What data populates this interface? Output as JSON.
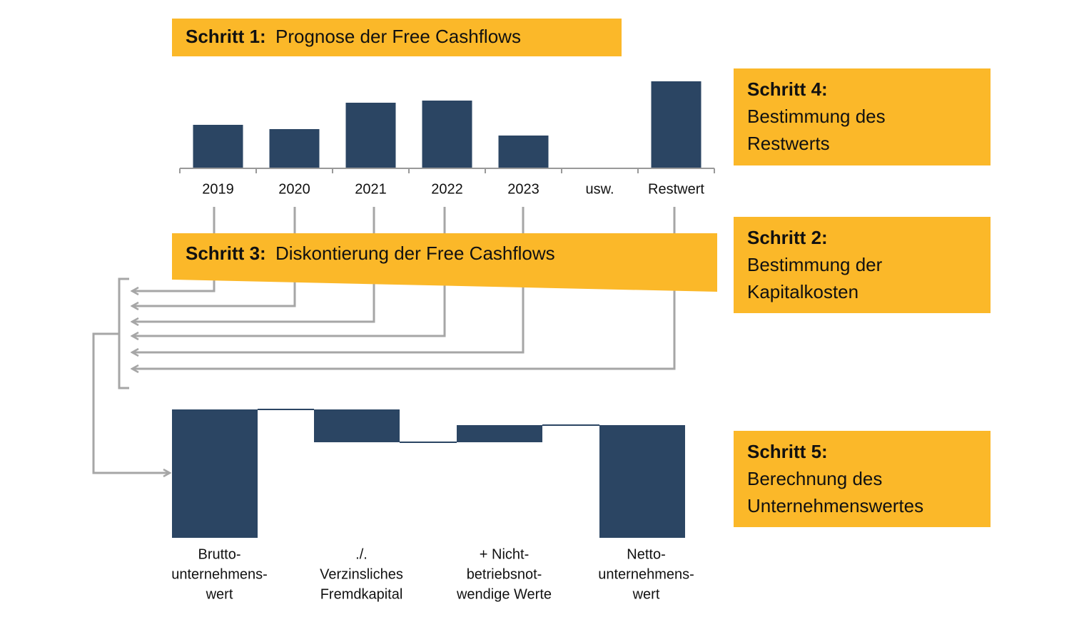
{
  "steps": [
    {
      "title": "Schritt 1:",
      "lines": [
        "Prognose der Free Cashflows"
      ]
    },
    {
      "title": "Schritt 2:",
      "lines": [
        "Bestimmung der",
        "Kapitalkosten"
      ]
    },
    {
      "title": "Schritt 3:",
      "lines": [
        "Diskontierung der Free Cashflows"
      ]
    },
    {
      "title": "Schritt 4:",
      "lines": [
        "Bestimmung des",
        "Restwerts"
      ]
    },
    {
      "title": "Schritt 5:",
      "lines": [
        "Berechnung des",
        "Unternehmenswertes"
      ]
    }
  ],
  "cashflow_chart": {
    "type": "bar",
    "categories": [
      "2019",
      "2020",
      "2021",
      "2022",
      "2023",
      "usw.",
      "Restwert"
    ],
    "values": [
      60,
      54,
      91,
      94,
      45,
      null,
      121
    ],
    "color": "#2b4563"
  },
  "bridge_chart": {
    "type": "waterfall",
    "categories": [
      [
        "Brutto-",
        "unternehmens-",
        "wert"
      ],
      [
        "./.",
        "Verzinsliches",
        "Fremdkapital"
      ],
      [
        "+ Nicht-",
        "betriebsnot-",
        "wendige Werte"
      ],
      [
        "Netto-",
        "unternehmens-",
        "wert"
      ]
    ],
    "values": [
      180,
      -46,
      24,
      158
    ],
    "color": "#2b4563"
  }
}
